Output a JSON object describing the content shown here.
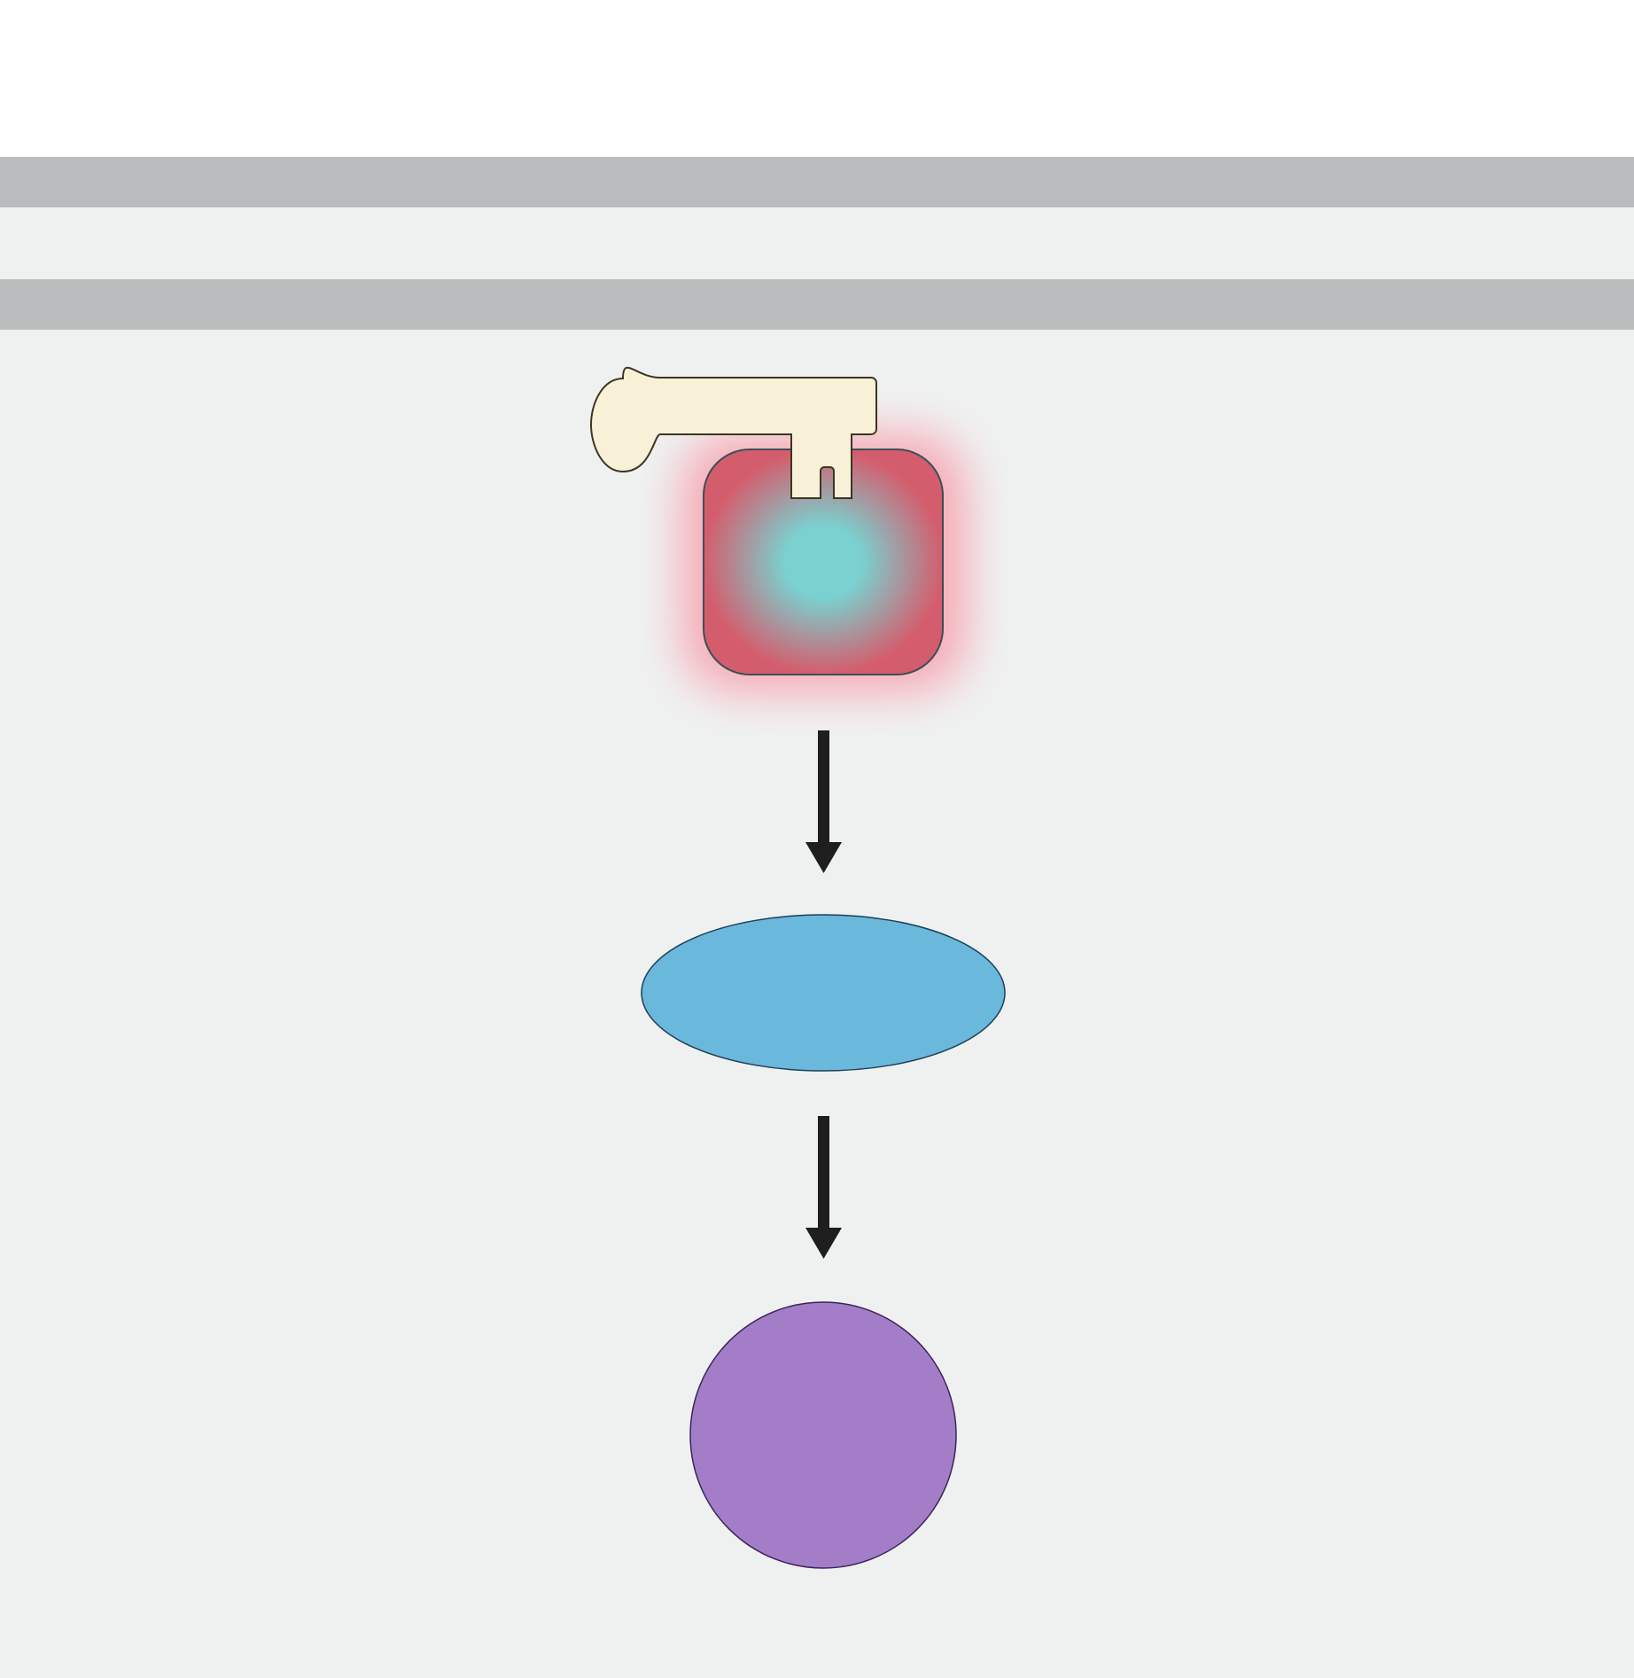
{
  "diagram": {
    "colors": {
      "page_background": "#ffffff",
      "panel_background": "#eff1f1",
      "membrane_band": "#bbbcbe",
      "receptor_edge": "#d45d6d",
      "receptor_glow": "#f7a7b3",
      "receptor_core": "#7ad1d0",
      "receptor_outline": "#3b4f56",
      "key_fill": "#f8f1d8",
      "key_outline": "#3d3520",
      "arrow": "#1e1e1e",
      "ellipse_fill": "#6ab8dc",
      "ellipse_outline": "#1d3f55",
      "circle_fill": "#a47dc8",
      "circle_outline": "#3a2457"
    },
    "icons": {
      "key": "key-icon",
      "receptor": "receptor-icon",
      "arrow": "down-arrow-icon"
    }
  }
}
